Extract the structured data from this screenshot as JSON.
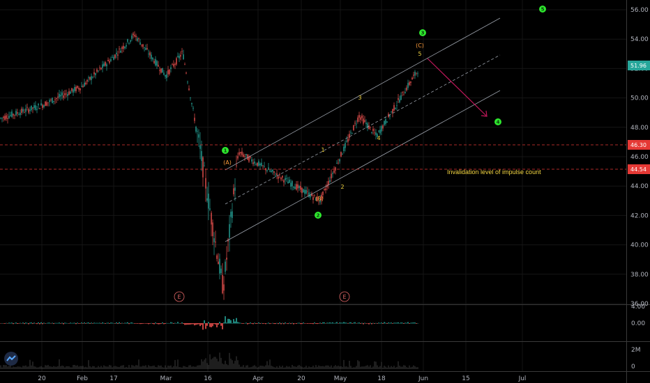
{
  "price_axis": {
    "labels": [
      "56.00",
      "54.00",
      "52.00",
      "50.00",
      "48.00",
      "46.00",
      "44.00",
      "42.00",
      "40.00",
      "38.00",
      "36.00"
    ],
    "current_price": "51.96",
    "current_price_color": "#26a69a",
    "level_high": "46.30",
    "level_low": "44.54",
    "level_color": "#e53935"
  },
  "indicator1_axis": [
    "4.00",
    "0.00"
  ],
  "indicator2_axis": [
    "2M",
    "0"
  ],
  "time_axis": [
    "20",
    "Feb",
    "17",
    "Mar",
    "16",
    "Apr",
    "20",
    "May",
    "18",
    "Jun",
    "15",
    "Jul"
  ],
  "annotation": {
    "invalidation": "Invalidation level of impulse count"
  },
  "waves": {
    "primary_green": [
      "1",
      "2",
      "3",
      "4",
      "5"
    ],
    "impulse_yellow": [
      "1",
      "2",
      "3",
      "4",
      "5"
    ],
    "corrective_orange": [
      "(A)",
      "(B)",
      "(C)"
    ],
    "earnings_marker": "E"
  },
  "colors": {
    "up": "#26a69a",
    "down": "#ef5350",
    "green_circle": "#2ee82e",
    "yellow_label": "#f5d742",
    "orange_label": "#ff9c3a",
    "channel": "#9aa0aa",
    "projection_arrow": "#c2185b"
  },
  "chart_data": {
    "type": "candlestick",
    "instrument_unit": "price",
    "ylim": [
      35.5,
      56.8
    ],
    "time_ticks": [
      "20",
      "Feb",
      "17",
      "Mar",
      "16",
      "Apr",
      "20",
      "May",
      "18",
      "Jun",
      "15",
      "Jul"
    ],
    "horizontal_levels": [
      46.3,
      44.54
    ],
    "last_price": 51.96,
    "price_path": [
      [
        48.6,
        "late Jan"
      ],
      [
        49.5,
        "20"
      ],
      [
        50.8,
        "Feb"
      ],
      [
        52.8,
        "17"
      ],
      [
        54.3,
        "late Feb"
      ],
      [
        51.5,
        "Mar"
      ],
      [
        53.1,
        "mid Mar"
      ],
      [
        47.0,
        "16"
      ],
      [
        37.0,
        "20 Mar low"
      ],
      [
        46.3,
        "Apr peak"
      ],
      [
        43.0,
        "(B) low"
      ],
      [
        48.8,
        "wave 3"
      ],
      [
        47.4,
        "wave 4"
      ],
      [
        51.96,
        "last"
      ]
    ],
    "projection": {
      "from": 52.1,
      "to": 48.2
    }
  }
}
